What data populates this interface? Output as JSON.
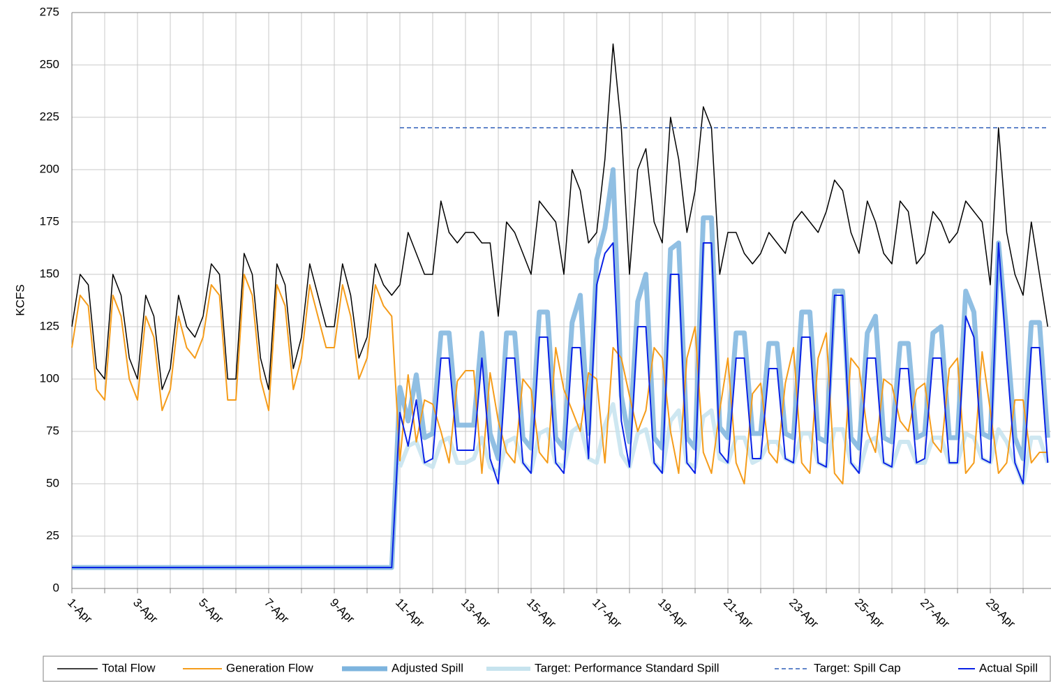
{
  "chart_data": {
    "type": "line",
    "y_label": "KCFS",
    "x": [
      0,
      0.25,
      0.5,
      0.75,
      1,
      1.25,
      1.5,
      1.75,
      2,
      2.25,
      2.5,
      2.75,
      3,
      3.25,
      3.5,
      3.75,
      4,
      4.25,
      4.5,
      4.75,
      5,
      5.25,
      5.5,
      5.75,
      6,
      6.25,
      6.5,
      6.75,
      7,
      7.25,
      7.5,
      7.75,
      8,
      8.25,
      8.5,
      8.75,
      9,
      9.25,
      9.5,
      9.75,
      10,
      10.25,
      10.5,
      10.75,
      11,
      11.25,
      11.5,
      11.75,
      12,
      12.25,
      12.5,
      12.75,
      13,
      13.25,
      13.5,
      13.75,
      14,
      14.25,
      14.5,
      14.75,
      15,
      15.25,
      15.5,
      15.75,
      16,
      16.25,
      16.5,
      16.75,
      17,
      17.25,
      17.5,
      17.75,
      18,
      18.25,
      18.5,
      18.75,
      19,
      19.25,
      19.5,
      19.75,
      20,
      20.25,
      20.5,
      20.75,
      21,
      21.25,
      21.5,
      21.75,
      22,
      22.25,
      22.5,
      22.75,
      23,
      23.25,
      23.5,
      23.75,
      24,
      24.25,
      24.5,
      24.75,
      25,
      25.25,
      25.5,
      25.75,
      26,
      26.25,
      26.5,
      26.75,
      27,
      27.25,
      27.5,
      27.75,
      28,
      28.25,
      28.5,
      28.75,
      29,
      29.25,
      29.5,
      29.75
    ],
    "xlim": [
      0,
      29.85
    ],
    "xticks": [
      {
        "value": 0,
        "label": "1-Apr"
      },
      {
        "value": 2,
        "label": "3-Apr"
      },
      {
        "value": 4,
        "label": "5-Apr"
      },
      {
        "value": 6,
        "label": "7-Apr"
      },
      {
        "value": 8,
        "label": "9-Apr"
      },
      {
        "value": 10,
        "label": "11-Apr"
      },
      {
        "value": 12,
        "label": "13-Apr"
      },
      {
        "value": 14,
        "label": "15-Apr"
      },
      {
        "value": 16,
        "label": "17-Apr"
      },
      {
        "value": 18,
        "label": "19-Apr"
      },
      {
        "value": 20,
        "label": "21-Apr"
      },
      {
        "value": 22,
        "label": "23-Apr"
      },
      {
        "value": 24,
        "label": "25-Apr"
      },
      {
        "value": 26,
        "label": "27-Apr"
      },
      {
        "value": 28,
        "label": "29-Apr"
      }
    ],
    "x_minor_ticks": [
      1,
      3,
      5,
      7,
      9,
      11,
      13,
      15,
      17,
      19,
      21,
      23,
      25,
      27,
      29
    ],
    "ylim": [
      0,
      275
    ],
    "yticks": [
      0,
      25,
      50,
      75,
      100,
      125,
      150,
      175,
      200,
      225,
      250,
      275
    ],
    "grid": true,
    "legend": "bottom",
    "series": [
      {
        "name": "Total Flow",
        "color": "#000000",
        "width": 1.5,
        "values": [
          125,
          150,
          145,
          105,
          100,
          150,
          140,
          110,
          100,
          140,
          130,
          95,
          105,
          140,
          125,
          120,
          130,
          155,
          150,
          100,
          100,
          160,
          150,
          110,
          95,
          155,
          145,
          105,
          120,
          155,
          140,
          125,
          125,
          155,
          140,
          110,
          120,
          155,
          145,
          140,
          145,
          170,
          160,
          150,
          150,
          185,
          170,
          165,
          170,
          170,
          165,
          165,
          130,
          175,
          170,
          160,
          150,
          185,
          180,
          175,
          150,
          200,
          190,
          165,
          170,
          205,
          260,
          220,
          150,
          200,
          210,
          175,
          165,
          225,
          205,
          170,
          190,
          230,
          220,
          150,
          170,
          170,
          160,
          155,
          160,
          170,
          165,
          160,
          175,
          180,
          175,
          170,
          180,
          195,
          190,
          170,
          160,
          185,
          175,
          160,
          155,
          185,
          180,
          155,
          160,
          180,
          175,
          165,
          170,
          185,
          180,
          175,
          145,
          220,
          170,
          150,
          140,
          175,
          150,
          125
        ]
      },
      {
        "name": "Generation Flow",
        "color": "#f59c1a",
        "width": 2,
        "values": [
          115,
          140,
          135,
          95,
          90,
          140,
          130,
          100,
          90,
          130,
          120,
          85,
          95,
          130,
          115,
          110,
          120,
          145,
          140,
          90,
          90,
          150,
          140,
          100,
          85,
          145,
          135,
          95,
          110,
          145,
          130,
          115,
          115,
          145,
          130,
          100,
          110,
          145,
          135,
          130,
          61,
          102,
          70,
          90,
          88,
          75,
          60,
          99,
          104,
          104,
          55,
          103,
          80,
          65,
          60,
          100,
          95,
          65,
          60,
          115,
          95,
          85,
          75,
          103,
          100,
          60,
          115,
          110,
          92,
          75,
          85,
          115,
          110,
          75,
          55,
          110,
          125,
          65,
          55,
          85,
          110,
          60,
          50,
          93,
          98,
          65,
          60,
          98,
          115,
          60,
          55,
          110,
          122,
          55,
          50,
          110,
          105,
          75,
          65,
          100,
          97,
          80,
          75,
          95,
          98,
          70,
          65,
          105,
          110,
          55,
          60,
          113,
          85,
          55,
          60,
          90,
          90,
          60,
          65,
          65
        ]
      },
      {
        "name": "Adjusted Spill",
        "color": "#7db4de",
        "width": 7,
        "values": [
          10,
          10,
          10,
          10,
          10,
          10,
          10,
          10,
          10,
          10,
          10,
          10,
          10,
          10,
          10,
          10,
          10,
          10,
          10,
          10,
          10,
          10,
          10,
          10,
          10,
          10,
          10,
          10,
          10,
          10,
          10,
          10,
          10,
          10,
          10,
          10,
          10,
          10,
          10,
          10,
          96,
          80,
          102,
          72,
          74,
          122,
          122,
          78,
          78,
          78,
          122,
          74,
          62,
          122,
          122,
          72,
          67,
          132,
          132,
          72,
          67,
          127,
          140,
          74,
          157,
          172,
          200,
          92,
          70,
          137,
          150,
          72,
          67,
          162,
          165,
          72,
          67,
          177,
          177,
          77,
          72,
          122,
          122,
          74,
          74,
          117,
          117,
          74,
          72,
          132,
          132,
          72,
          70,
          142,
          142,
          72,
          67,
          122,
          130,
          72,
          70,
          117,
          117,
          72,
          74,
          122,
          125,
          72,
          72,
          142,
          132,
          74,
          72,
          165,
          122,
          72,
          62,
          127,
          127,
          72
        ]
      },
      {
        "name": "Target: Performance Standard Spill",
        "color": "#c6e3ee",
        "width": 6,
        "values": [
          null,
          null,
          null,
          null,
          null,
          null,
          null,
          null,
          null,
          null,
          null,
          null,
          null,
          null,
          null,
          null,
          null,
          null,
          null,
          null,
          null,
          null,
          null,
          null,
          null,
          null,
          null,
          null,
          null,
          null,
          null,
          null,
          null,
          null,
          null,
          null,
          null,
          null,
          null,
          null,
          58,
          68,
          70,
          60,
          58,
          70,
          72,
          60,
          60,
          62,
          72,
          58,
          55,
          70,
          72,
          60,
          56,
          74,
          76,
          60,
          58,
          75,
          78,
          62,
          60,
          78,
          88,
          64,
          58,
          74,
          76,
          60,
          56,
          80,
          85,
          60,
          58,
          82,
          85,
          62,
          60,
          72,
          72,
          60,
          62,
          70,
          70,
          62,
          60,
          74,
          74,
          60,
          58,
          76,
          76,
          60,
          56,
          70,
          72,
          60,
          58,
          70,
          70,
          60,
          60,
          72,
          72,
          60,
          60,
          74,
          72,
          62,
          60,
          76,
          70,
          60,
          50,
          72,
          72,
          60
        ]
      },
      {
        "name": "Target: Spill Cap",
        "color": "#2f5fb8",
        "width": 1.5,
        "dash": "6 4",
        "values": [
          null,
          null,
          null,
          null,
          null,
          null,
          null,
          null,
          null,
          null,
          null,
          null,
          null,
          null,
          null,
          null,
          null,
          null,
          null,
          null,
          null,
          null,
          null,
          null,
          null,
          null,
          null,
          null,
          null,
          null,
          null,
          null,
          null,
          null,
          null,
          null,
          null,
          null,
          null,
          null,
          220,
          220,
          220,
          220,
          220,
          220,
          220,
          220,
          220,
          220,
          220,
          220,
          220,
          220,
          220,
          220,
          220,
          220,
          220,
          220,
          220,
          220,
          220,
          220,
          220,
          220,
          220,
          220,
          220,
          220,
          220,
          220,
          220,
          220,
          220,
          220,
          220,
          220,
          220,
          220,
          220,
          220,
          220,
          220,
          220,
          220,
          220,
          220,
          220,
          220,
          220,
          220,
          220,
          220,
          220,
          220,
          220,
          220,
          220,
          220,
          220,
          220,
          220,
          220,
          220,
          220,
          220,
          220,
          220,
          220,
          220,
          220,
          220,
          220,
          220,
          220,
          220,
          220,
          220,
          220
        ]
      },
      {
        "name": "Actual Spill",
        "color": "#0a22e6",
        "width": 2,
        "values": [
          10,
          10,
          10,
          10,
          10,
          10,
          10,
          10,
          10,
          10,
          10,
          10,
          10,
          10,
          10,
          10,
          10,
          10,
          10,
          10,
          10,
          10,
          10,
          10,
          10,
          10,
          10,
          10,
          10,
          10,
          10,
          10,
          10,
          10,
          10,
          10,
          10,
          10,
          10,
          10,
          84,
          68,
          90,
          60,
          62,
          110,
          110,
          66,
          66,
          66,
          110,
          62,
          50,
          110,
          110,
          60,
          55,
          120,
          120,
          60,
          55,
          115,
          115,
          62,
          145,
          160,
          165,
          80,
          58,
          125,
          125,
          60,
          55,
          150,
          150,
          60,
          55,
          165,
          165,
          65,
          60,
          110,
          110,
          62,
          62,
          105,
          105,
          62,
          60,
          120,
          120,
          60,
          58,
          140,
          140,
          60,
          55,
          110,
          110,
          60,
          58,
          105,
          105,
          60,
          62,
          110,
          110,
          60,
          60,
          130,
          120,
          62,
          60,
          165,
          110,
          60,
          50,
          115,
          115,
          60
        ]
      }
    ]
  }
}
